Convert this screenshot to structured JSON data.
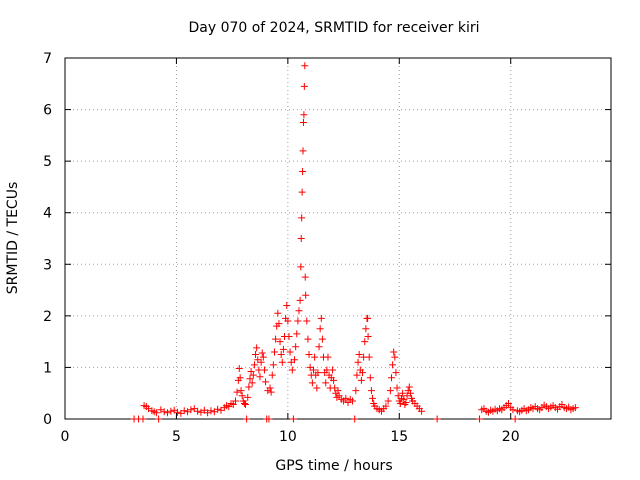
{
  "chart_data": {
    "type": "scatter",
    "title": "Day 070 of 2024, SRMTID for receiver kiri",
    "xlabel": "GPS time / hours",
    "ylabel": "SRMTID / TECUs",
    "xlim": [
      0,
      24.5
    ],
    "ylim": [
      0,
      7
    ],
    "xticks": [
      0,
      5,
      10,
      15,
      20
    ],
    "yticks": [
      0,
      1,
      2,
      3,
      4,
      5,
      6,
      7
    ],
    "xtick_labels": [
      "0",
      "5",
      "10",
      "15",
      "20"
    ],
    "ytick_labels": [
      "0",
      "1",
      "2",
      "3",
      "4",
      "5",
      "6",
      "7"
    ],
    "grid": true,
    "marker": "+",
    "series": [
      {
        "name": "SRMTID",
        "color": "#ff0000",
        "points": [
          [
            3.1,
            0.0
          ],
          [
            3.3,
            0.0
          ],
          [
            3.5,
            0.0
          ],
          [
            3.55,
            0.26
          ],
          [
            3.65,
            0.24
          ],
          [
            3.75,
            0.2
          ],
          [
            3.9,
            0.16
          ],
          [
            4.0,
            0.14
          ],
          [
            4.1,
            0.12
          ],
          [
            4.2,
            0.0
          ],
          [
            4.3,
            0.18
          ],
          [
            4.45,
            0.14
          ],
          [
            4.6,
            0.12
          ],
          [
            4.75,
            0.15
          ],
          [
            4.9,
            0.17
          ],
          [
            5.05,
            0.13
          ],
          [
            5.2,
            0.11
          ],
          [
            5.35,
            0.16
          ],
          [
            5.5,
            0.14
          ],
          [
            5.65,
            0.18
          ],
          [
            5.8,
            0.2
          ],
          [
            5.95,
            0.15
          ],
          [
            6.1,
            0.13
          ],
          [
            6.25,
            0.17
          ],
          [
            6.4,
            0.12
          ],
          [
            6.55,
            0.16
          ],
          [
            6.7,
            0.14
          ],
          [
            6.85,
            0.19
          ],
          [
            7.0,
            0.17
          ],
          [
            7.15,
            0.22
          ],
          [
            7.25,
            0.26
          ],
          [
            7.35,
            0.24
          ],
          [
            7.45,
            0.3
          ],
          [
            7.55,
            0.28
          ],
          [
            7.65,
            0.35
          ],
          [
            7.72,
            0.52
          ],
          [
            7.78,
            0.75
          ],
          [
            7.82,
            0.98
          ],
          [
            7.86,
            0.8
          ],
          [
            7.9,
            0.55
          ],
          [
            7.95,
            0.45
          ],
          [
            8.0,
            0.35
          ],
          [
            8.05,
            0.3
          ],
          [
            8.1,
            0.28
          ],
          [
            8.15,
            0.0
          ],
          [
            8.2,
            0.42
          ],
          [
            8.25,
            0.62
          ],
          [
            8.3,
            0.78
          ],
          [
            8.35,
            0.92
          ],
          [
            8.4,
            0.7
          ],
          [
            8.45,
            0.85
          ],
          [
            8.5,
            1.05
          ],
          [
            8.55,
            1.25
          ],
          [
            8.6,
            1.38
          ],
          [
            8.65,
            1.15
          ],
          [
            8.7,
            0.95
          ],
          [
            8.75,
            0.82
          ],
          [
            8.8,
            1.1
          ],
          [
            8.85,
            1.28
          ],
          [
            8.9,
            1.2
          ],
          [
            8.95,
            0.95
          ],
          [
            9.0,
            0.72
          ],
          [
            9.05,
            0.0
          ],
          [
            9.1,
            0.55
          ],
          [
            9.15,
            0.0
          ],
          [
            9.2,
            0.6
          ],
          [
            9.25,
            0.52
          ],
          [
            9.3,
            0.85
          ],
          [
            9.35,
            1.05
          ],
          [
            9.4,
            1.3
          ],
          [
            9.45,
            1.55
          ],
          [
            9.5,
            1.8
          ],
          [
            9.55,
            2.05
          ],
          [
            9.6,
            1.85
          ],
          [
            9.65,
            1.5
          ],
          [
            9.7,
            1.25
          ],
          [
            9.75,
            1.1
          ],
          [
            9.8,
            1.35
          ],
          [
            9.85,
            1.6
          ],
          [
            9.9,
            1.95
          ],
          [
            9.95,
            2.2
          ],
          [
            10.0,
            1.9
          ],
          [
            10.05,
            1.6
          ],
          [
            10.1,
            1.3
          ],
          [
            10.15,
            1.1
          ],
          [
            10.2,
            0.95
          ],
          [
            10.25,
            0.0
          ],
          [
            10.3,
            1.15
          ],
          [
            10.35,
            1.4
          ],
          [
            10.4,
            1.65
          ],
          [
            10.45,
            1.9
          ],
          [
            10.5,
            2.1
          ],
          [
            10.55,
            2.3
          ],
          [
            10.58,
            2.95
          ],
          [
            10.6,
            3.5
          ],
          [
            10.62,
            3.9
          ],
          [
            10.64,
            4.4
          ],
          [
            10.66,
            4.8
          ],
          [
            10.68,
            5.2
          ],
          [
            10.7,
            5.75
          ],
          [
            10.72,
            5.9
          ],
          [
            10.74,
            6.45
          ],
          [
            10.76,
            6.85
          ],
          [
            10.78,
            2.75
          ],
          [
            10.8,
            2.4
          ],
          [
            10.85,
            1.9
          ],
          [
            10.9,
            1.55
          ],
          [
            10.95,
            1.25
          ],
          [
            11.0,
            1.0
          ],
          [
            11.05,
            0.85
          ],
          [
            11.1,
            0.7
          ],
          [
            11.15,
            0.95
          ],
          [
            11.2,
            1.2
          ],
          [
            11.25,
            0.85
          ],
          [
            11.3,
            0.6
          ],
          [
            11.35,
            0.9
          ],
          [
            11.4,
            1.4
          ],
          [
            11.45,
            1.75
          ],
          [
            11.5,
            1.95
          ],
          [
            11.55,
            1.55
          ],
          [
            11.6,
            1.2
          ],
          [
            11.65,
            0.9
          ],
          [
            11.7,
            0.7
          ],
          [
            11.75,
            0.95
          ],
          [
            11.8,
            1.2
          ],
          [
            11.85,
            0.85
          ],
          [
            11.9,
            0.6
          ],
          [
            11.95,
            0.8
          ],
          [
            12.0,
            0.95
          ],
          [
            12.05,
            0.75
          ],
          [
            12.1,
            0.6
          ],
          [
            12.15,
            0.5
          ],
          [
            12.2,
            0.42
          ],
          [
            12.25,
            0.55
          ],
          [
            12.3,
            0.45
          ],
          [
            12.4,
            0.38
          ],
          [
            12.5,
            0.35
          ],
          [
            12.6,
            0.4
          ],
          [
            12.7,
            0.32
          ],
          [
            12.8,
            0.38
          ],
          [
            12.9,
            0.35
          ],
          [
            13.0,
            0.0
          ],
          [
            13.05,
            0.55
          ],
          [
            13.1,
            0.85
          ],
          [
            13.15,
            1.1
          ],
          [
            13.2,
            1.25
          ],
          [
            13.25,
            0.95
          ],
          [
            13.3,
            0.75
          ],
          [
            13.35,
            0.9
          ],
          [
            13.4,
            1.2
          ],
          [
            13.45,
            1.5
          ],
          [
            13.5,
            1.75
          ],
          [
            13.55,
            1.95
          ],
          [
            13.58,
            1.95
          ],
          [
            13.6,
            1.6
          ],
          [
            13.65,
            1.2
          ],
          [
            13.7,
            0.8
          ],
          [
            13.75,
            0.55
          ],
          [
            13.8,
            0.4
          ],
          [
            13.85,
            0.3
          ],
          [
            13.9,
            0.25
          ],
          [
            14.0,
            0.2
          ],
          [
            14.1,
            0.18
          ],
          [
            14.2,
            0.15
          ],
          [
            14.3,
            0.2
          ],
          [
            14.4,
            0.25
          ],
          [
            14.5,
            0.35
          ],
          [
            14.6,
            0.55
          ],
          [
            14.65,
            0.8
          ],
          [
            14.7,
            1.05
          ],
          [
            14.75,
            1.3
          ],
          [
            14.8,
            1.2
          ],
          [
            14.85,
            0.9
          ],
          [
            14.9,
            0.6
          ],
          [
            14.95,
            0.45
          ],
          [
            15.0,
            0.35
          ],
          [
            15.05,
            0.3
          ],
          [
            15.1,
            0.4
          ],
          [
            15.15,
            0.5
          ],
          [
            15.2,
            0.38
          ],
          [
            15.25,
            0.28
          ],
          [
            15.3,
            0.32
          ],
          [
            15.35,
            0.45
          ],
          [
            15.4,
            0.55
          ],
          [
            15.45,
            0.62
          ],
          [
            15.5,
            0.5
          ],
          [
            15.55,
            0.4
          ],
          [
            15.6,
            0.35
          ],
          [
            15.7,
            0.3
          ],
          [
            15.8,
            0.25
          ],
          [
            15.9,
            0.2
          ],
          [
            16.0,
            0.15
          ],
          [
            16.7,
            0.0
          ],
          [
            18.6,
            0.0
          ],
          [
            18.7,
            0.18
          ],
          [
            18.8,
            0.2
          ],
          [
            18.9,
            0.15
          ],
          [
            19.0,
            0.13
          ],
          [
            19.1,
            0.17
          ],
          [
            19.2,
            0.15
          ],
          [
            19.3,
            0.19
          ],
          [
            19.4,
            0.16
          ],
          [
            19.5,
            0.2
          ],
          [
            19.6,
            0.18
          ],
          [
            19.7,
            0.22
          ],
          [
            19.8,
            0.26
          ],
          [
            19.9,
            0.3
          ],
          [
            20.0,
            0.22
          ],
          [
            20.1,
            0.18
          ],
          [
            20.2,
            0.0
          ],
          [
            20.3,
            0.16
          ],
          [
            20.4,
            0.14
          ],
          [
            20.5,
            0.17
          ],
          [
            20.6,
            0.2
          ],
          [
            20.7,
            0.16
          ],
          [
            20.8,
            0.18
          ],
          [
            20.9,
            0.22
          ],
          [
            21.0,
            0.2
          ],
          [
            21.1,
            0.24
          ],
          [
            21.2,
            0.2
          ],
          [
            21.3,
            0.18
          ],
          [
            21.4,
            0.22
          ],
          [
            21.5,
            0.27
          ],
          [
            21.6,
            0.24
          ],
          [
            21.7,
            0.2
          ],
          [
            21.8,
            0.23
          ],
          [
            21.9,
            0.26
          ],
          [
            22.0,
            0.22
          ],
          [
            22.1,
            0.19
          ],
          [
            22.2,
            0.24
          ],
          [
            22.3,
            0.28
          ],
          [
            22.4,
            0.22
          ],
          [
            22.5,
            0.2
          ],
          [
            22.6,
            0.23
          ],
          [
            22.7,
            0.18
          ],
          [
            22.8,
            0.2
          ],
          [
            22.9,
            0.22
          ]
        ]
      }
    ]
  }
}
